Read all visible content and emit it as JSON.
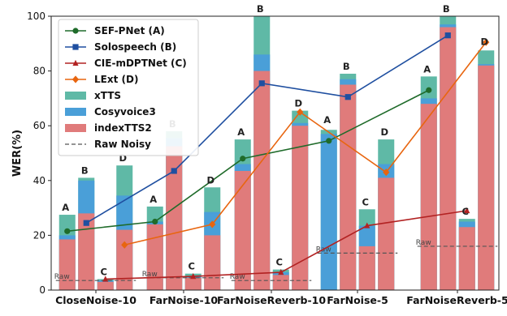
{
  "chart_data": {
    "type": "bar",
    "categories": [
      "CloseNoise-10",
      "FarNoise-10",
      "FarNoiseReverb-10",
      "FarNoise-5",
      "FarNoiseReverb-5"
    ],
    "ylabel": "WER(%)",
    "xlabel": "",
    "ylim": [
      0,
      100
    ],
    "yticks": [
      0,
      20,
      40,
      60,
      80,
      100
    ],
    "legend_position": "top-left",
    "grid": false,
    "tts_series": [
      {
        "name": "xTTS",
        "color": "#5fb9a6"
      },
      {
        "name": "Cosyvoice3",
        "color": "#4a9fd8"
      },
      {
        "name": "indexTTS2",
        "color": "#e07b7b"
      }
    ],
    "bar_groups": [
      {
        "label": "A",
        "index": 0,
        "xTTS": 27.5,
        "Cosyvoice3": 20.0,
        "indexTTS2": 18.5
      },
      {
        "label": "B",
        "index": 0,
        "xTTS": 41.0,
        "Cosyvoice3": 40.0,
        "indexTTS2": 28.0
      },
      {
        "label": "C",
        "index": 0,
        "xTTS": 4.0,
        "Cosyvoice3": 3.5,
        "indexTTS2": 3.0
      },
      {
        "label": "D",
        "index": 0,
        "xTTS": 45.5,
        "Cosyvoice3": 34.5,
        "indexTTS2": 22.0
      },
      {
        "label": "A",
        "index": 1,
        "xTTS": 30.5,
        "Cosyvoice3": 25.0,
        "indexTTS2": 24.0
      },
      {
        "label": "B",
        "index": 1,
        "xTTS": 58.0,
        "Cosyvoice3": 55.5,
        "indexTTS2": 52.5
      },
      {
        "label": "C",
        "index": 1,
        "xTTS": 6.0,
        "Cosyvoice3": 5.0,
        "indexTTS2": 4.5
      },
      {
        "label": "D",
        "index": 1,
        "xTTS": 37.5,
        "Cosyvoice3": 28.5,
        "indexTTS2": 20.0
      },
      {
        "label": "A",
        "index": 2,
        "xTTS": 55.0,
        "Cosyvoice3": 46.0,
        "indexTTS2": 43.5
      },
      {
        "label": "B",
        "index": 2,
        "xTTS": 100.0,
        "Cosyvoice3": 86.0,
        "indexTTS2": 80.0
      },
      {
        "label": "C",
        "index": 2,
        "xTTS": 7.5,
        "Cosyvoice3": 6.5,
        "indexTTS2": 5.5
      },
      {
        "label": "D",
        "index": 2,
        "xTTS": 65.5,
        "Cosyvoice3": 61.0,
        "indexTTS2": 60.0
      },
      {
        "label": "",
        "index": 3,
        "xTTS": 58.5,
        "Cosyvoice3": 57.0,
        "indexTTS2": 0.0
      },
      {
        "label": "B",
        "index": 3,
        "xTTS": 79.0,
        "Cosyvoice3": 77.0,
        "indexTTS2": 75.0
      },
      {
        "label": "C",
        "index": 3,
        "xTTS": 29.5,
        "Cosyvoice3": 23.5,
        "indexTTS2": 16.0
      },
      {
        "label": "D",
        "index": 3,
        "xTTS": 55.0,
        "Cosyvoice3": 46.0,
        "indexTTS2": 41.0
      },
      {
        "label": "A",
        "index": 4,
        "xTTS": 78.0,
        "Cosyvoice3": 70.0,
        "indexTTS2": 68.0
      },
      {
        "label": "",
        "index": 4,
        "xTTS": 100.0,
        "Cosyvoice3": 97.0,
        "indexTTS2": 96.0
      },
      {
        "label": "C",
        "index": 4,
        "xTTS": 26.0,
        "Cosyvoice3": 25.0,
        "indexTTS2": 23.0
      },
      {
        "label": "",
        "index": 4,
        "xTTS": 87.5,
        "Cosyvoice3": 82.5,
        "indexTTS2": 82.0
      }
    ],
    "standalone_labels": [
      {
        "label": "A",
        "index": 3,
        "value": 59.5
      },
      {
        "label": "B",
        "index": 4,
        "value": 100.0
      },
      {
        "label": "D",
        "index": 4,
        "value": 88.0
      }
    ],
    "series": [
      {
        "name": "SEF-PNet (A)",
        "color": "#1f6b2a",
        "marker": "circle",
        "values": [
          21.5,
          25.0,
          48.0,
          54.5,
          73.0
        ]
      },
      {
        "name": "Solospeech (B)",
        "color": "#1f4fa0",
        "marker": "square",
        "values": [
          24.5,
          43.5,
          75.5,
          70.5,
          93.0
        ]
      },
      {
        "name": "CIE-mDPTNet (C)",
        "color": "#b22222",
        "marker": "triangle",
        "values": [
          4.0,
          5.0,
          6.5,
          23.5,
          29.0
        ]
      },
      {
        "name": "LExt (D)",
        "color": "#e8650f",
        "marker": "diamond",
        "values": [
          16.5,
          24.0,
          65.0,
          43.0,
          90.5
        ]
      }
    ],
    "raw_noisy": {
      "name": "Raw Noisy",
      "label": "Raw",
      "values": [
        3.5,
        4.5,
        3.5,
        13.5,
        16.0
      ]
    }
  }
}
